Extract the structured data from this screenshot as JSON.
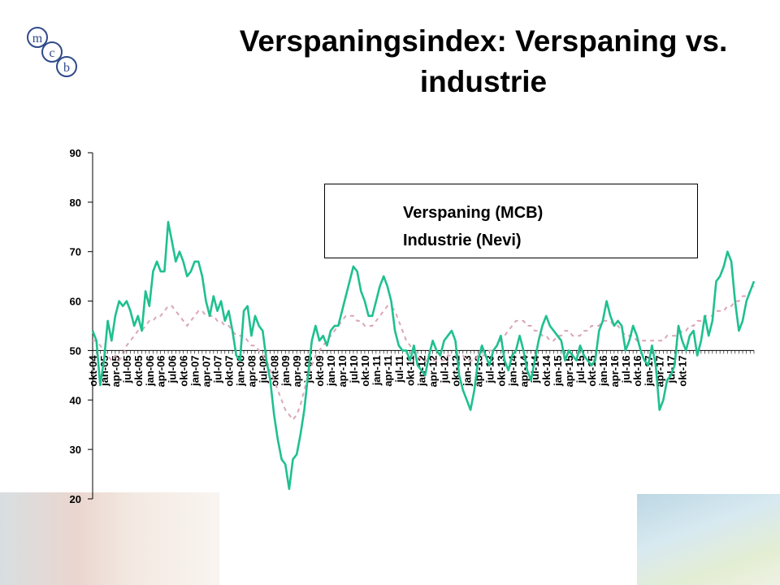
{
  "slide": {
    "title": "Verspaningsindex: Verspaning vs. industrie",
    "logo_letters": [
      "m",
      "c",
      "b"
    ]
  },
  "colors": {
    "series_mcb": "#1fc08f",
    "series_nevi": "#d9a6b8"
  },
  "chart_data": {
    "type": "line",
    "title": "",
    "xlabel": "",
    "ylabel": "",
    "ylim": [
      20,
      90
    ],
    "yticks": [
      20,
      30,
      40,
      50,
      60,
      70,
      80,
      90
    ],
    "x_axis_crosses_at": 50,
    "grid": false,
    "legend_position": "top-right",
    "x_start": "okt-04",
    "x_end": "dec-17",
    "x_tick_labels": [
      "okt-04",
      "jan-05",
      "apr-05",
      "jul-05",
      "okt-05",
      "jan-06",
      "apr-06",
      "jul-06",
      "okt-06",
      "jan-07",
      "apr-07",
      "jul-07",
      "okt-07",
      "jan-08",
      "apr-08",
      "jul-08",
      "okt-08",
      "jan-09",
      "apr-09",
      "jul-09",
      "okt-09",
      "jan-10",
      "apr-10",
      "jul-10",
      "okt-10",
      "jan-11",
      "apr-11",
      "jul-11",
      "okt-11",
      "jan-12",
      "apr-12",
      "jul-12",
      "okt-12",
      "jan-13",
      "apr-13",
      "jul-13",
      "okt-13",
      "jan-14",
      "apr-14",
      "jul-14",
      "okt-14",
      "jan-15",
      "apr-15",
      "jul-15",
      "okt-15",
      "jan-16",
      "apr-16",
      "jul-16",
      "okt-16",
      "jan-17",
      "apr-17",
      "jul-17",
      "okt-17"
    ],
    "series": [
      {
        "name": "Verspaning (MCB)",
        "style": "solid",
        "values": [
          54,
          52,
          43,
          48,
          56,
          52,
          57,
          60,
          59,
          60,
          58,
          55,
          57,
          54,
          62,
          59,
          66,
          68,
          66,
          66,
          76,
          72,
          68,
          70,
          68,
          65,
          66,
          68,
          68,
          65,
          60,
          57,
          61,
          58,
          60,
          56,
          58,
          54,
          49,
          48,
          58,
          59,
          53,
          57,
          55,
          54,
          48,
          44,
          37,
          32,
          28,
          27,
          22,
          28,
          29,
          33,
          38,
          45,
          52,
          55,
          52,
          53,
          51,
          54,
          55,
          55,
          58,
          61,
          64,
          67,
          66,
          62,
          60,
          57,
          57,
          60,
          63,
          65,
          63,
          60,
          54,
          51,
          50,
          50,
          48,
          51,
          47,
          46,
          45,
          49,
          52,
          50,
          49,
          52,
          53,
          54,
          52,
          45,
          42,
          40,
          38,
          42,
          48,
          51,
          49,
          47,
          50,
          51,
          53,
          48,
          46,
          49,
          50,
          53,
          50,
          46,
          44,
          48,
          52,
          55,
          57,
          55,
          54,
          53,
          52,
          48,
          50,
          49,
          48,
          51,
          49,
          48,
          47,
          48,
          54,
          56,
          60,
          57,
          55,
          56,
          55,
          50,
          52,
          55,
          53,
          50,
          48,
          47,
          51,
          47,
          38,
          40,
          44,
          45,
          47,
          55,
          52,
          50,
          53,
          54,
          49,
          52,
          57,
          53,
          56,
          64,
          65,
          67,
          70,
          68,
          60,
          54,
          56,
          60,
          62,
          64
        ],
        "style_color_key": "series_mcb"
      },
      {
        "name": "Industrie (Nevi)",
        "style": "dashed",
        "values": [
          52,
          52,
          51,
          50,
          49,
          48,
          49,
          48,
          49,
          51,
          52,
          53,
          54,
          54,
          55,
          56,
          56,
          57,
          57,
          58,
          59,
          59,
          58,
          57,
          56,
          55,
          56,
          57,
          58,
          58,
          57,
          57,
          57,
          56,
          56,
          55,
          55,
          54,
          53,
          53,
          53,
          52,
          51,
          51,
          50,
          49,
          48,
          46,
          44,
          42,
          40,
          38,
          37,
          36,
          37,
          39,
          42,
          45,
          47,
          49,
          50,
          51,
          52,
          53,
          54,
          55,
          56,
          57,
          57,
          57,
          56,
          56,
          55,
          55,
          55,
          56,
          57,
          58,
          59,
          59,
          58,
          56,
          54,
          52,
          51,
          50,
          49,
          48,
          48,
          48,
          48,
          48,
          48,
          48,
          49,
          49,
          49,
          49,
          49,
          48,
          48,
          48,
          49,
          49,
          49,
          50,
          50,
          51,
          52,
          53,
          54,
          55,
          56,
          56,
          56,
          55,
          55,
          54,
          54,
          53,
          53,
          52,
          52,
          53,
          53,
          54,
          54,
          53,
          53,
          53,
          54,
          54,
          55,
          55,
          55,
          56,
          56,
          56,
          55,
          55,
          54,
          53,
          53,
          53,
          52,
          52,
          52,
          52,
          52,
          52,
          52,
          52,
          53,
          53,
          53,
          53,
          54,
          54,
          55,
          55,
          56,
          56,
          57,
          57,
          57,
          58,
          58,
          58,
          59,
          59,
          60,
          60,
          61,
          61,
          62,
          63
        ],
        "style_color_key": "series_nevi"
      }
    ]
  }
}
